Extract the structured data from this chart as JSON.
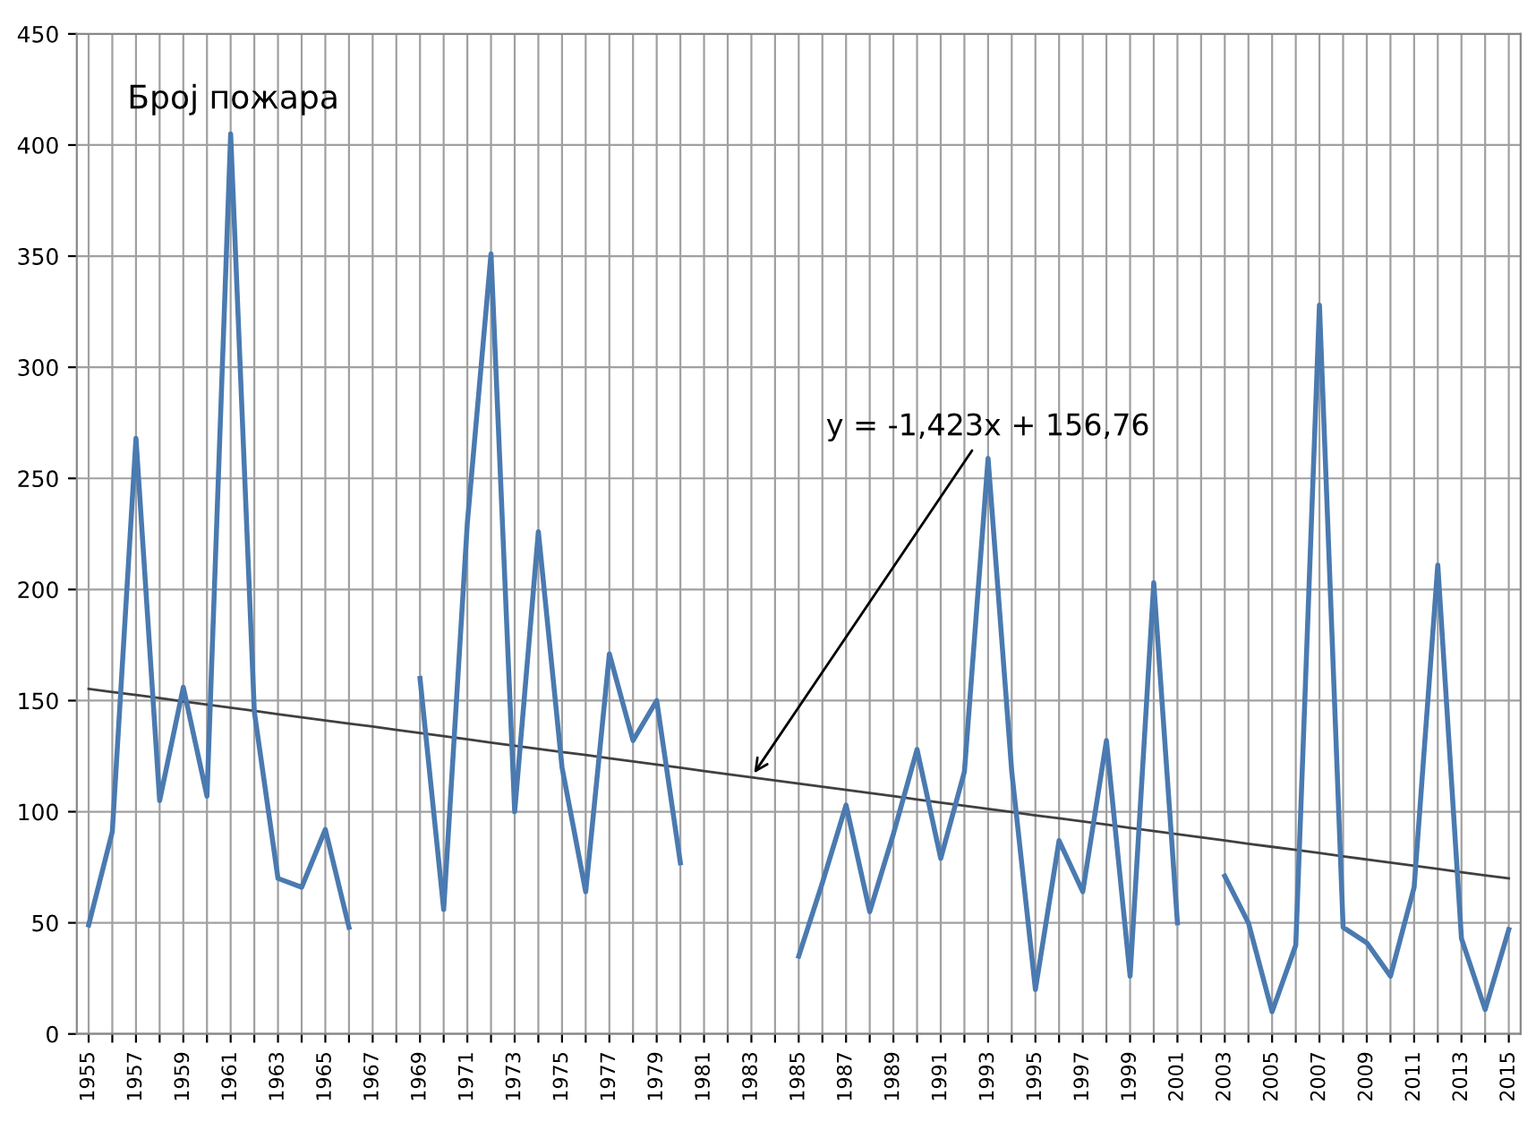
{
  "chart_data": {
    "type": "line",
    "title": "Број пожара",
    "categories": [
      "1955",
      null,
      "1957",
      null,
      "1959",
      null,
      "1961",
      null,
      "1963",
      null,
      "1965",
      null,
      "1967",
      null,
      "1969",
      null,
      "1971",
      null,
      "1973",
      null,
      "1975",
      null,
      "1977",
      null,
      "1979",
      null,
      "1981",
      null,
      "1983",
      null,
      "1985",
      null,
      "1987",
      null,
      "1989",
      null,
      "1991",
      null,
      "1993",
      null,
      "1995",
      null,
      "1997",
      null,
      "1999",
      null,
      "2001",
      null,
      "2003",
      null,
      "2005",
      null,
      "2007",
      null,
      "2009",
      null,
      "2011",
      null,
      "2013",
      null,
      "2015"
    ],
    "series": [
      {
        "color": "#4a7ab0",
        "values": [
          49,
          91,
          268,
          105,
          156,
          107,
          405,
          145,
          70,
          66,
          92,
          48,
          null,
          null,
          160,
          56,
          230,
          351,
          100,
          226,
          120,
          64,
          171,
          132,
          150,
          77,
          null,
          null,
          null,
          null,
          35,
          68,
          103,
          55,
          90,
          128,
          79,
          118,
          259,
          118,
          20,
          87,
          64,
          132,
          26,
          203,
          50,
          null,
          71,
          50,
          10,
          40,
          328,
          48,
          41,
          26,
          66,
          211,
          43,
          11,
          47
        ]
      },
      {
        "type": "line",
        "color": "#404040",
        "values": [
          155.3,
          153.9,
          152.5,
          151.1,
          149.6,
          148.2,
          146.8,
          145.4,
          143.9,
          142.5,
          141.1,
          139.7,
          138.3,
          136.8,
          135.4,
          134.0,
          132.6,
          131.1,
          129.7,
          128.3,
          126.9,
          125.5,
          124.0,
          122.6,
          121.2,
          119.8,
          118.3,
          116.9,
          115.5,
          114.1,
          112.7,
          111.2,
          109.8,
          108.4,
          107.0,
          105.5,
          104.1,
          102.7,
          101.3,
          99.9,
          98.4,
          97.0,
          95.6,
          94.2,
          92.7,
          91.3,
          89.9,
          88.5,
          87.1,
          85.6,
          84.2,
          82.8,
          81.4,
          79.9,
          78.5,
          77.1,
          75.7,
          74.3,
          72.8,
          71.4,
          70.0
        ]
      }
    ],
    "annotations": [
      {
        "text": "y = -1,423x + 156,76",
        "x": "1983",
        "y": 115.5
      }
    ],
    "ylim": [
      0,
      450
    ],
    "yticks": [
      0,
      50,
      100,
      150,
      200,
      250,
      300,
      350,
      400,
      450
    ],
    "grid": true,
    "legend": false,
    "marker": "none",
    "line_style": "solid"
  }
}
